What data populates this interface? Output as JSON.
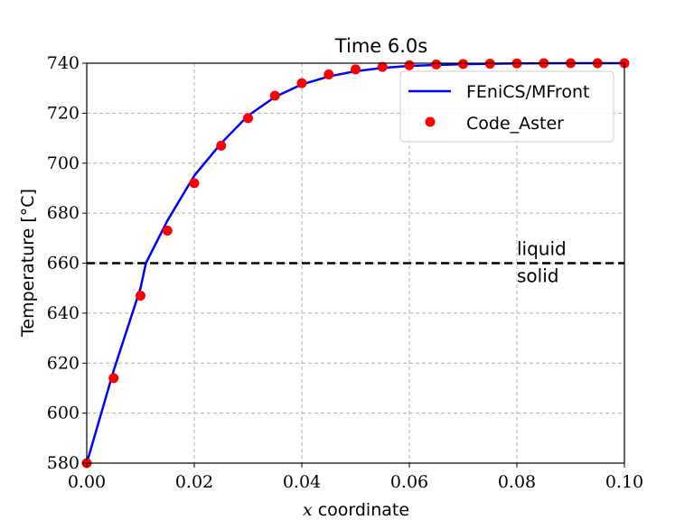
{
  "chart_data": {
    "type": "line",
    "title": "Time 6.0s",
    "xlabel_var": "x",
    "xlabel_rest": " coordinate",
    "ylabel": "Temperature [°C]",
    "xlim": [
      0,
      0.1
    ],
    "ylim": [
      580,
      740
    ],
    "xticks": [
      "0.00",
      "0.02",
      "0.04",
      "0.06",
      "0.08",
      "0.10"
    ],
    "yticks": [
      "580",
      "600",
      "620",
      "640",
      "660",
      "680",
      "700",
      "720",
      "740"
    ],
    "grid": true,
    "legend_position": "top-right",
    "series": [
      {
        "name": "FEniCS/MFront",
        "style": "line",
        "color": "#0000ff",
        "x": [
          0.0,
          0.005,
          0.01,
          0.011,
          0.015,
          0.02,
          0.025,
          0.03,
          0.035,
          0.04,
          0.045,
          0.05,
          0.055,
          0.06,
          0.065,
          0.07,
          0.08,
          0.09,
          0.1
        ],
        "y": [
          580,
          617,
          650,
          660,
          677,
          695,
          708,
          719,
          726.5,
          731.5,
          734.7,
          736.8,
          738.1,
          738.9,
          739.3,
          739.6,
          739.9,
          740,
          740
        ]
      },
      {
        "name": "Code_Aster",
        "style": "marker",
        "color": "#ff0000",
        "x": [
          0.0,
          0.005,
          0.01,
          0.015,
          0.02,
          0.025,
          0.03,
          0.035,
          0.04,
          0.045,
          0.05,
          0.055,
          0.06,
          0.065,
          0.07,
          0.075,
          0.08,
          0.085,
          0.09,
          0.095,
          0.1
        ],
        "y": [
          580,
          614,
          647,
          673,
          692,
          707,
          718,
          727,
          732,
          735.5,
          737.5,
          738.5,
          739.2,
          739.5,
          739.7,
          739.8,
          739.9,
          740,
          740,
          740,
          740
        ]
      }
    ],
    "reference_line": {
      "y": 660,
      "color": "#000000"
    },
    "annotations": {
      "above": "liquid",
      "below": "solid",
      "x": 0.08
    }
  }
}
